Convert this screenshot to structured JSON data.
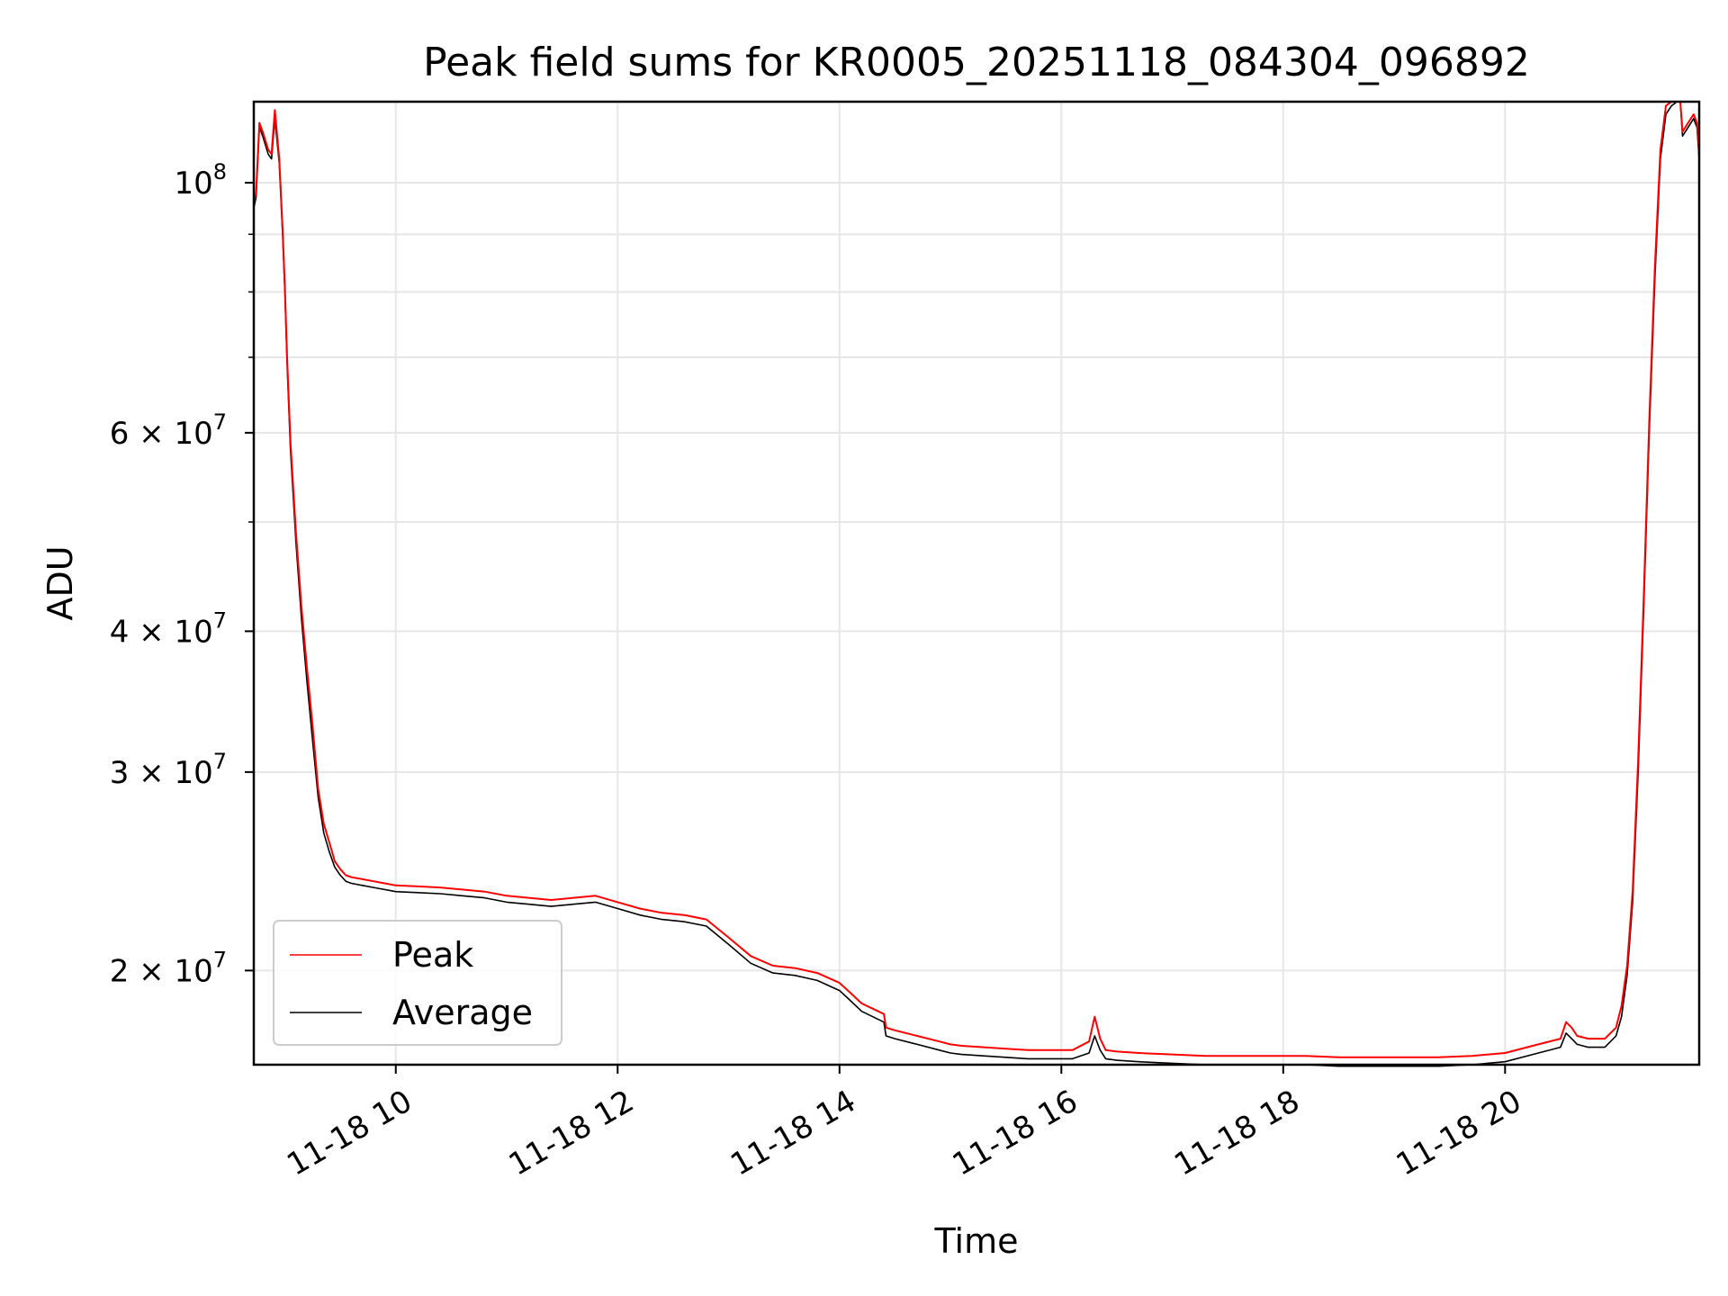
{
  "chart_data": {
    "type": "line",
    "title": "Peak field sums for KR0005_20251118_084304_096892",
    "xlabel": "Time",
    "ylabel": "ADU",
    "x_unit": "hours since 2025-11-18 00:00",
    "xlim": [
      8.72,
      21.75
    ],
    "ylim": [
      16500000,
      118000000
    ],
    "yscale": "log",
    "grid": true,
    "x_ticks": [
      {
        "value": 10,
        "label": "11-18 10"
      },
      {
        "value": 12,
        "label": "11-18 12"
      },
      {
        "value": 14,
        "label": "11-18 14"
      },
      {
        "value": 16,
        "label": "11-18 16"
      },
      {
        "value": 18,
        "label": "11-18 18"
      },
      {
        "value": 20,
        "label": "11-18 20"
      }
    ],
    "y_major_ticks": [
      {
        "value": 100000000,
        "base": "10",
        "exp": "8"
      },
      {
        "value": 60000000,
        "base": "6 × 10",
        "exp": "7"
      },
      {
        "value": 40000000,
        "base": "4 × 10",
        "exp": "7"
      },
      {
        "value": 30000000,
        "base": "3 × 10",
        "exp": "7"
      },
      {
        "value": 20000000,
        "base": "2 × 10",
        "exp": "7"
      }
    ],
    "y_minor_ticks": [
      90000000,
      80000000,
      70000000,
      50000000
    ],
    "legend": {
      "placement": "lower-left",
      "entries": [
        {
          "name": "Peak",
          "color": "#ff0000"
        },
        {
          "name": "Average",
          "color": "#000000"
        }
      ]
    },
    "series": [
      {
        "name": "Average",
        "color": "#000000",
        "x": [
          8.72,
          8.74,
          8.77,
          8.8,
          8.85,
          8.88,
          8.91,
          8.95,
          8.98,
          9.0,
          9.02,
          9.05,
          9.1,
          9.15,
          9.2,
          9.25,
          9.3,
          9.35,
          9.4,
          9.45,
          9.5,
          9.55,
          9.6,
          9.7,
          9.8,
          9.9,
          10.0,
          10.2,
          10.4,
          10.6,
          10.8,
          11.0,
          11.2,
          11.4,
          11.6,
          11.8,
          12.0,
          12.2,
          12.4,
          12.6,
          12.8,
          13.0,
          13.2,
          13.4,
          13.6,
          13.8,
          14.0,
          14.1,
          14.2,
          14.3,
          14.4,
          14.42,
          14.5,
          14.7,
          14.9,
          15.0,
          15.1,
          15.3,
          15.5,
          15.7,
          15.9,
          16.1,
          16.25,
          16.3,
          16.35,
          16.4,
          16.5,
          16.7,
          17.0,
          17.3,
          17.6,
          17.9,
          18.2,
          18.5,
          18.8,
          19.1,
          19.4,
          19.7,
          20.0,
          20.3,
          20.5,
          20.55,
          20.6,
          20.65,
          20.75,
          20.9,
          21.0,
          21.05,
          21.1,
          21.15,
          21.2,
          21.25,
          21.3,
          21.35,
          21.4,
          21.45,
          21.5,
          21.55,
          21.58,
          21.6,
          21.65,
          21.7,
          21.73,
          21.75
        ],
        "values": [
          95000000,
          97000000,
          112000000,
          110000000,
          106000000,
          105000000,
          114000000,
          104000000,
          90000000,
          80000000,
          69000000,
          58000000,
          48000000,
          41000000,
          36000000,
          32000000,
          28500000,
          26500000,
          25500000,
          24700000,
          24300000,
          24000000,
          23900000,
          23800000,
          23700000,
          23600000,
          23500000,
          23450000,
          23400000,
          23300000,
          23200000,
          23000000,
          22900000,
          22800000,
          22900000,
          23000000,
          22700000,
          22400000,
          22200000,
          22100000,
          21900000,
          21100000,
          20300000,
          19900000,
          19800000,
          19600000,
          19200000,
          18800000,
          18400000,
          18200000,
          18000000,
          17500000,
          17400000,
          17200000,
          17000000,
          16900000,
          16850000,
          16800000,
          16750000,
          16700000,
          16700000,
          16700000,
          16900000,
          17500000,
          17000000,
          16700000,
          16650000,
          16600000,
          16550000,
          16500000,
          16500000,
          16500000,
          16500000,
          16450000,
          16450000,
          16450000,
          16450000,
          16500000,
          16600000,
          16900000,
          17100000,
          17600000,
          17400000,
          17200000,
          17100000,
          17100000,
          17500000,
          18200000,
          19800000,
          23000000,
          30000000,
          42000000,
          60000000,
          82000000,
          105000000,
          115000000,
          117000000,
          118000000,
          118000000,
          110000000,
          112000000,
          114000000,
          112000000,
          105000000
        ]
      },
      {
        "name": "Peak",
        "color": "#ff0000",
        "x": [
          8.72,
          8.74,
          8.77,
          8.8,
          8.85,
          8.88,
          8.91,
          8.95,
          8.98,
          9.0,
          9.02,
          9.05,
          9.1,
          9.15,
          9.2,
          9.25,
          9.3,
          9.35,
          9.4,
          9.45,
          9.5,
          9.55,
          9.6,
          9.7,
          9.8,
          9.9,
          10.0,
          10.2,
          10.4,
          10.6,
          10.8,
          11.0,
          11.2,
          11.4,
          11.6,
          11.8,
          12.0,
          12.2,
          12.4,
          12.6,
          12.8,
          13.0,
          13.2,
          13.4,
          13.6,
          13.8,
          14.0,
          14.1,
          14.2,
          14.3,
          14.4,
          14.42,
          14.5,
          14.7,
          14.9,
          15.0,
          15.1,
          15.3,
          15.5,
          15.7,
          15.9,
          16.1,
          16.25,
          16.3,
          16.35,
          16.4,
          16.5,
          16.7,
          17.0,
          17.3,
          17.6,
          17.9,
          18.2,
          18.5,
          18.8,
          19.1,
          19.4,
          19.7,
          20.0,
          20.3,
          20.5,
          20.55,
          20.6,
          20.65,
          20.75,
          20.9,
          21.0,
          21.05,
          21.1,
          21.15,
          21.2,
          21.25,
          21.3,
          21.35,
          21.4,
          21.45,
          21.5,
          21.55,
          21.58,
          21.6,
          21.65,
          21.7,
          21.73,
          21.75
        ],
        "values": [
          96000000,
          98000000,
          113000000,
          111000000,
          107000000,
          106000000,
          116000000,
          105000000,
          91000000,
          81000000,
          70000000,
          59000000,
          49000000,
          42000000,
          37000000,
          33000000,
          29000000,
          27000000,
          26000000,
          25000000,
          24600000,
          24300000,
          24200000,
          24100000,
          24000000,
          23900000,
          23800000,
          23750000,
          23700000,
          23600000,
          23500000,
          23300000,
          23200000,
          23100000,
          23200000,
          23300000,
          23000000,
          22700000,
          22500000,
          22400000,
          22200000,
          21400000,
          20600000,
          20200000,
          20100000,
          19900000,
          19500000,
          19100000,
          18700000,
          18500000,
          18300000,
          17800000,
          17700000,
          17500000,
          17300000,
          17200000,
          17150000,
          17100000,
          17050000,
          17000000,
          17000000,
          17000000,
          17300000,
          18200000,
          17400000,
          17000000,
          16950000,
          16900000,
          16850000,
          16800000,
          16800000,
          16800000,
          16800000,
          16750000,
          16750000,
          16750000,
          16750000,
          16800000,
          16900000,
          17200000,
          17400000,
          18000000,
          17800000,
          17500000,
          17400000,
          17400000,
          17800000,
          18600000,
          20200000,
          23500000,
          30800000,
          43000000,
          61500000,
          84000000,
          107000000,
          117000000,
          118000000,
          118000000,
          118000000,
          111000000,
          113000000,
          115000000,
          113000000,
          106000000
        ]
      }
    ]
  }
}
